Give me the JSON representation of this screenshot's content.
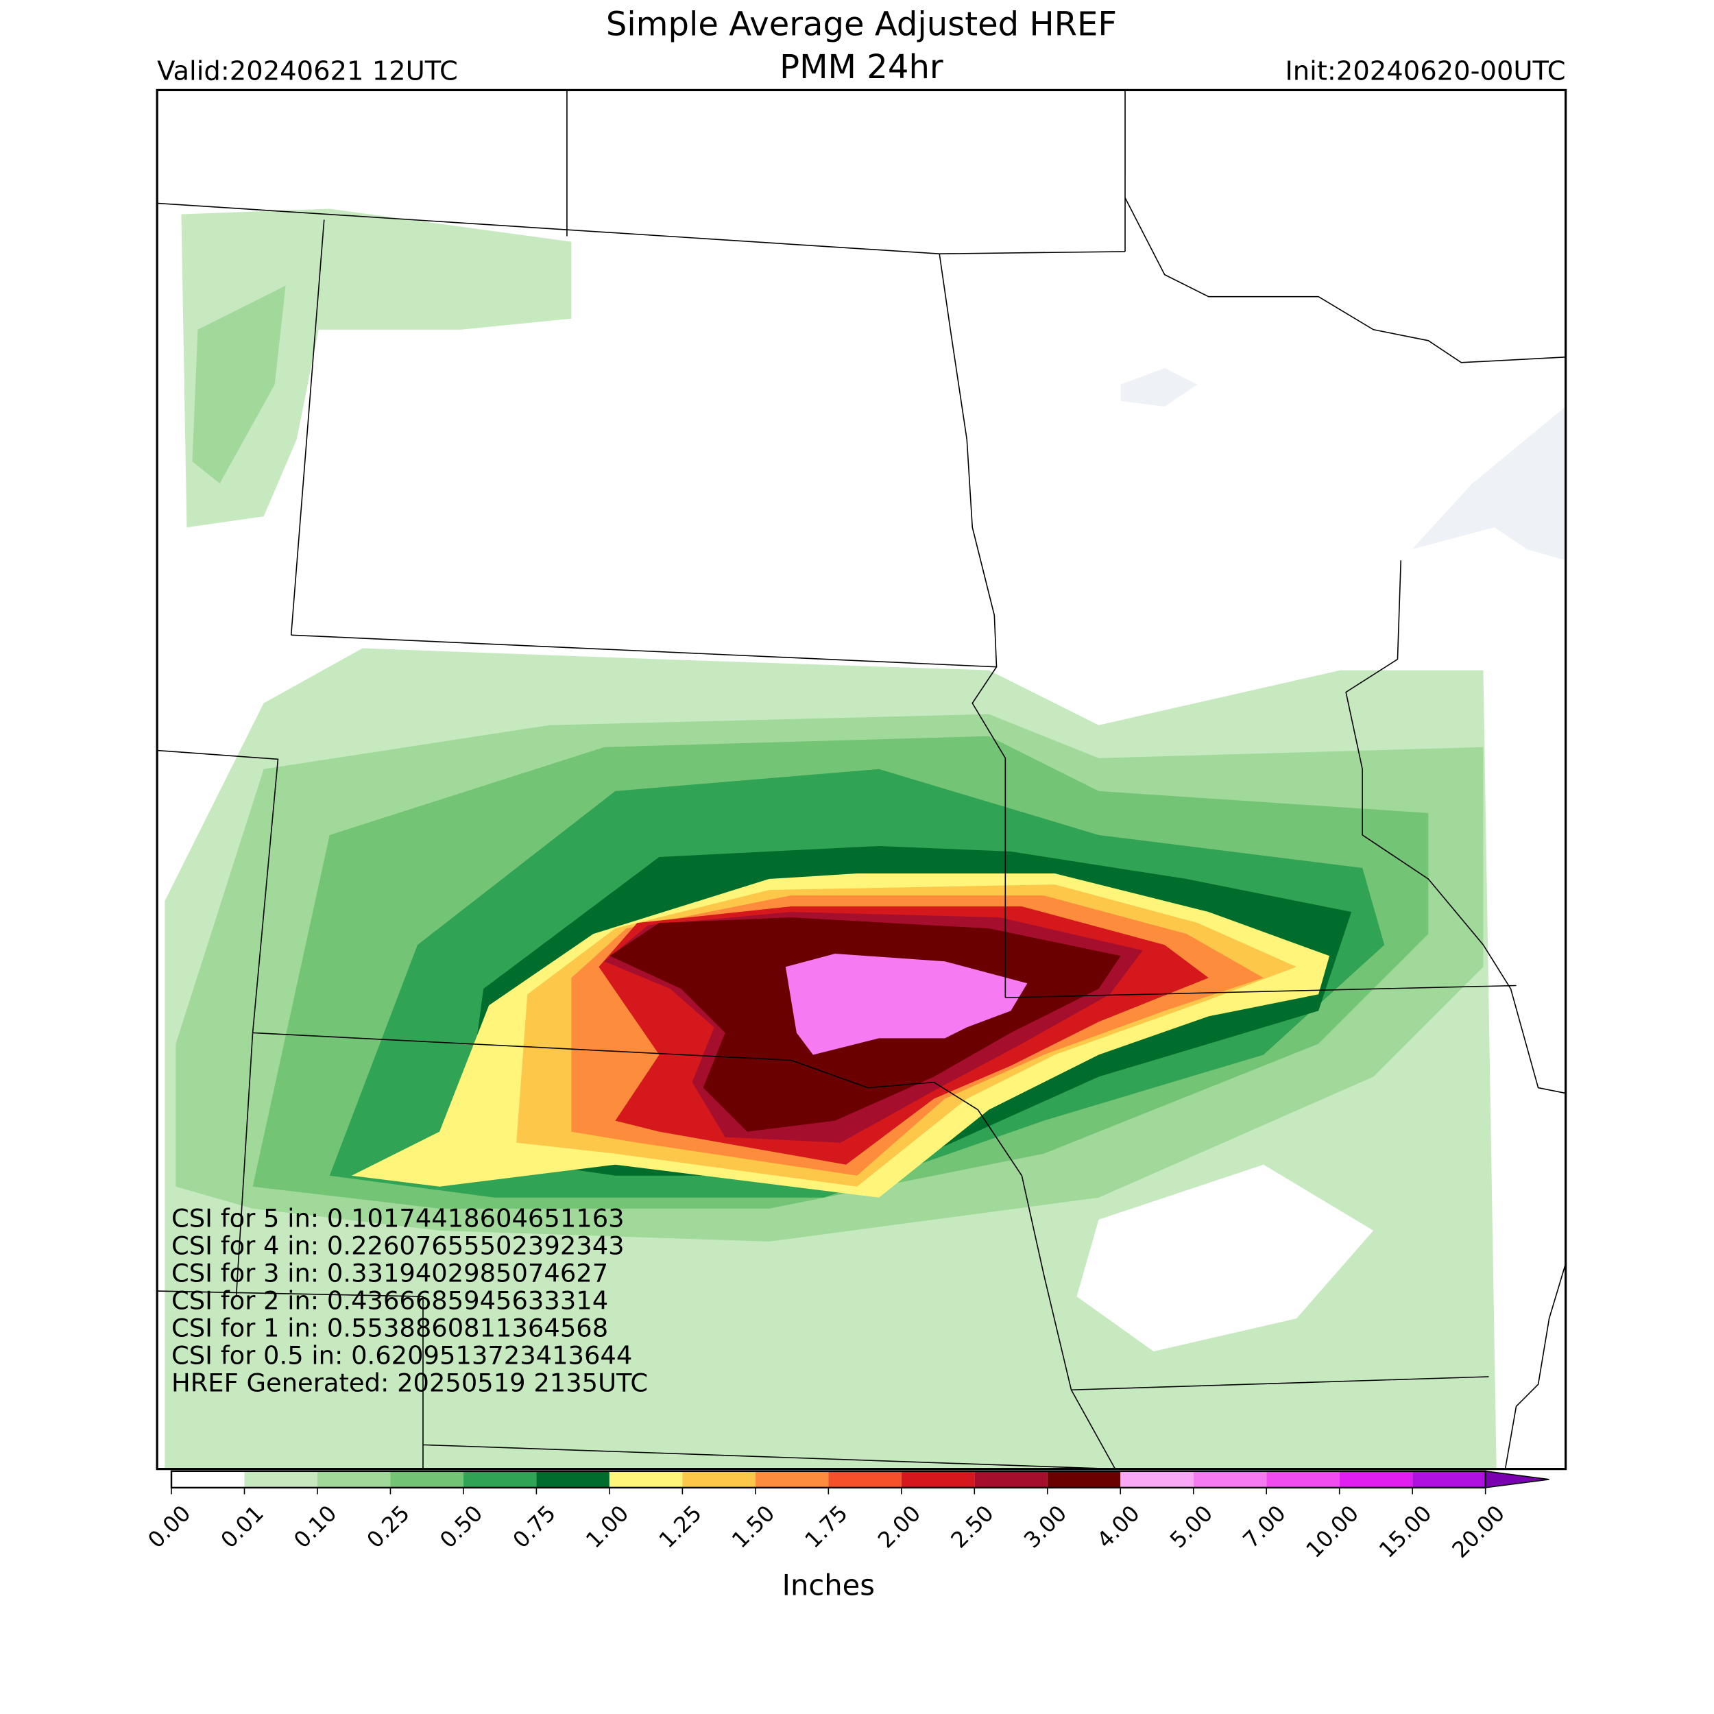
{
  "header": {
    "title": "Simple Average Adjusted HREF",
    "subtitle": "PMM 24hr",
    "valid": "Valid:20240621 12UTC",
    "init": "Init:20240620-00UTC"
  },
  "annotations": [
    "CSI for 5 in: 0.10174418604651163",
    "CSI for 4 in: 0.22607655502392343",
    "CSI for 3 in: 0.3319402985074627",
    "CSI for 2 in: 0.4366685945633314",
    "CSI for 1 in: 0.5538860811364568",
    "CSI for 0.5 in: 0.6209513723413644",
    "HREF Generated: 20250519 2135UTC"
  ],
  "colorbar": {
    "label": "Inches",
    "ticks": [
      "0.00",
      "0.01",
      "0.10",
      "0.25",
      "0.50",
      "0.75",
      "1.00",
      "1.25",
      "1.50",
      "1.75",
      "2.00",
      "2.50",
      "3.00",
      "4.00",
      "5.00",
      "7.00",
      "10.00",
      "15.00",
      "20.00"
    ],
    "colors": [
      "#ffffff",
      "#c7e9c0",
      "#a1d99b",
      "#74c476",
      "#31a354",
      "#006d2c",
      "#fff57a",
      "#fdc84a",
      "#fd8d3c",
      "#f4502a",
      "#d4181b",
      "#a50f2d",
      "#6b0000",
      "#f9a8f5",
      "#f67af2",
      "#f04cf0",
      "#e01ef0",
      "#b010e0"
    ],
    "extend_color": "#7a00b0"
  }
}
